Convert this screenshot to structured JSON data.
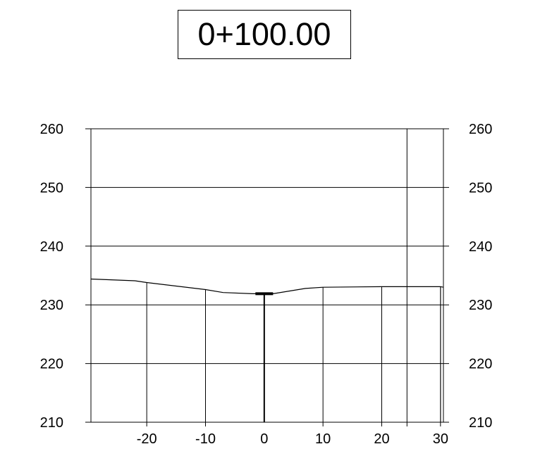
{
  "title": "0+100.00",
  "chart_data": {
    "type": "line",
    "title": "0+100.00",
    "xlabel": "",
    "ylabel": "",
    "xlim": [
      -29.5,
      30.5
    ],
    "ylim": [
      210,
      260
    ],
    "x_ticks": [
      -20,
      -10,
      0,
      10,
      20,
      30
    ],
    "y_ticks": [
      210,
      220,
      230,
      240,
      250,
      260
    ],
    "grid": true,
    "series": [
      {
        "x": [
          -29.5,
          -22,
          -20,
          -10,
          -7,
          -2,
          1.5,
          7,
          10,
          20,
          30,
          30.5
        ],
        "y": [
          234.4,
          234.1,
          233.8,
          232.6,
          232.1,
          231.9,
          231.9,
          232.8,
          233.0,
          233.1,
          233.1,
          233.0
        ]
      }
    ],
    "annotations": [
      {
        "type": "centerline",
        "x": 0,
        "y_top": 231.9,
        "y_bottom": 210,
        "cap_halfwidth": 1.5
      },
      {
        "type": "vertical-line",
        "x": 24.3
      }
    ]
  }
}
